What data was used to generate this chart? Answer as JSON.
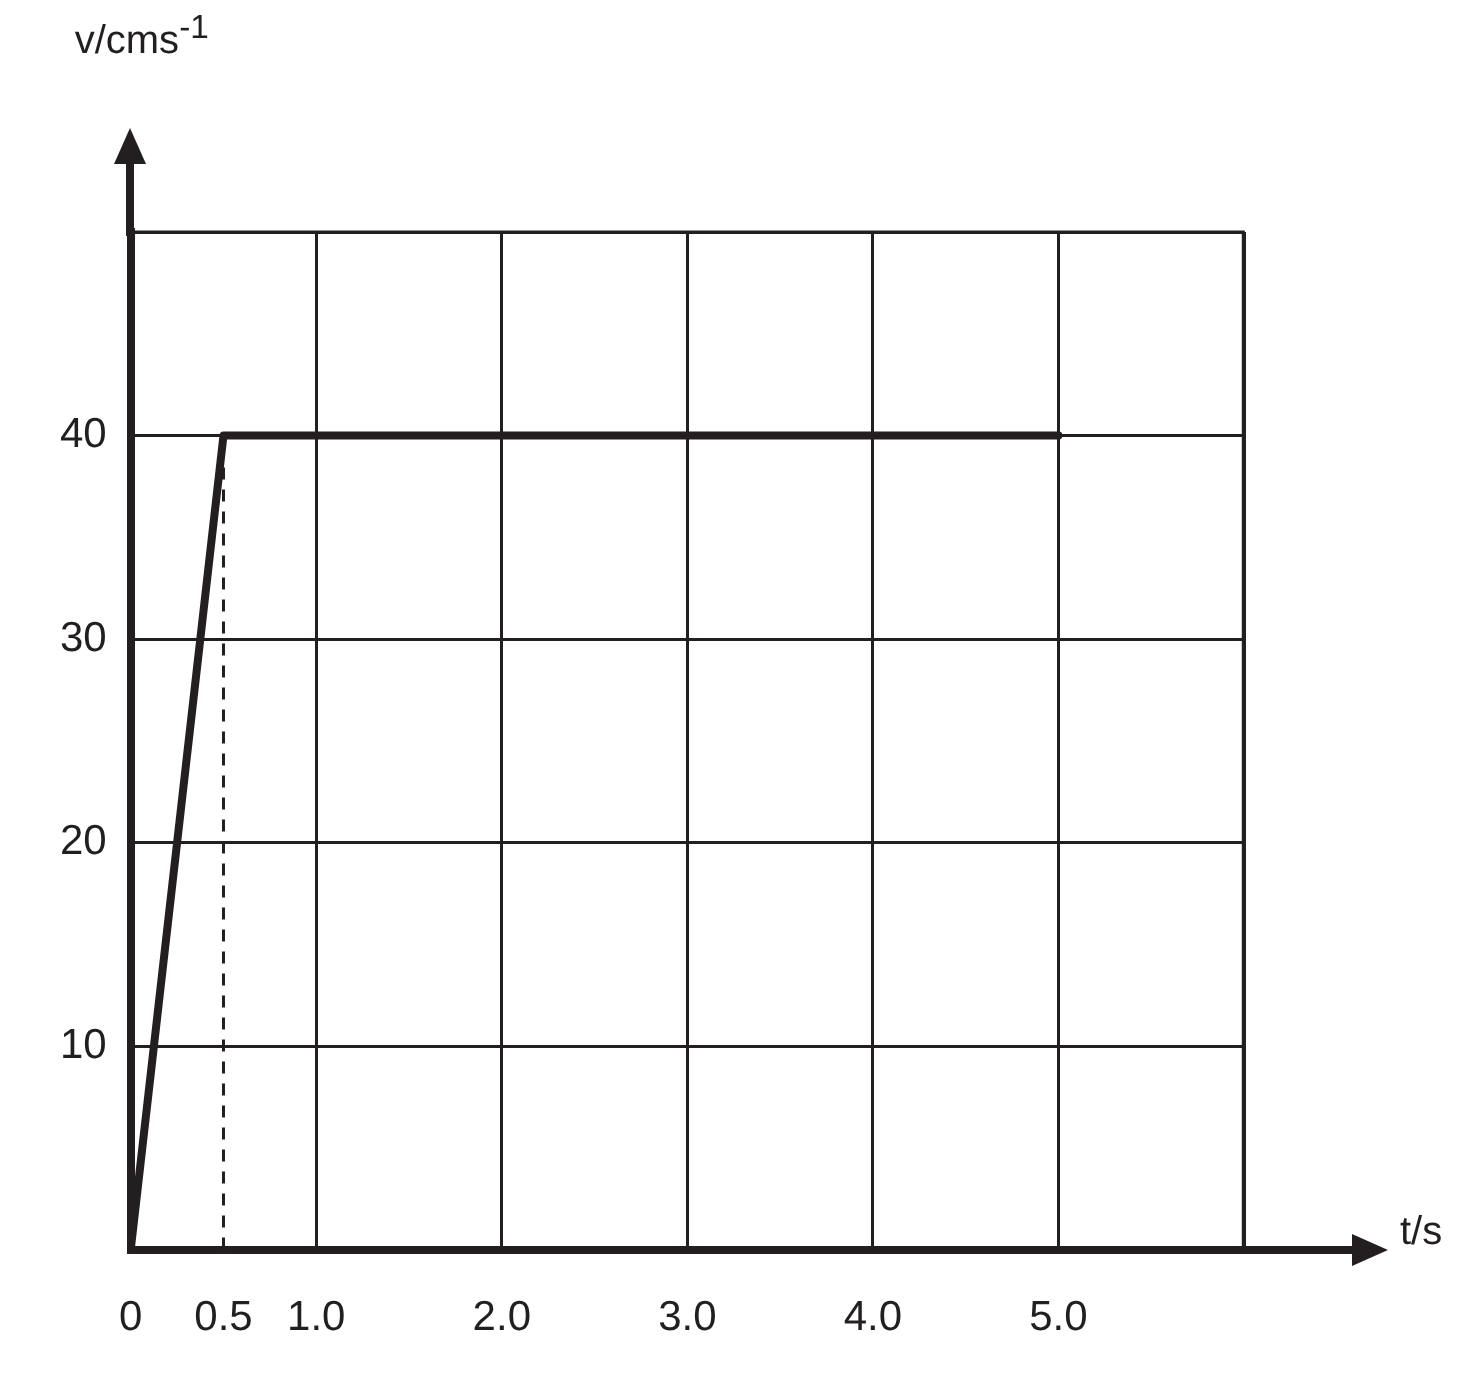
{
  "chart_data": {
    "type": "line",
    "xlabel": "t/s",
    "ylabel": "v/cms$^{-1}$",
    "x": [
      0,
      0.5,
      5
    ],
    "series": [
      {
        "color": "#231f20",
        "values": [
          0,
          40,
          40
        ]
      }
    ],
    "xlim": [
      0,
      6
    ],
    "ylim": [
      0,
      50
    ],
    "xticks": [
      0,
      0.5,
      {
        "value": 1,
        "label": "1.0"
      },
      {
        "value": 2,
        "label": "2.0"
      },
      {
        "value": 3,
        "label": "3.0"
      },
      {
        "value": 4,
        "label": "4.0"
      },
      {
        "value": 5,
        "label": "5.0"
      },
      {
        "value": 6,
        "label": null
      }
    ],
    "yticks": [
      {
        "value": 0,
        "label": null
      },
      10,
      20,
      30,
      40,
      {
        "value": 50,
        "label": null
      }
    ],
    "ref_lines": [
      {
        "axis": "x",
        "value": 0.5,
        "line_style": "dashed",
        "color": "#231f20"
      }
    ],
    "grid": true,
    "legend": false,
    "marker": "none",
    "line_style": "solid"
  }
}
